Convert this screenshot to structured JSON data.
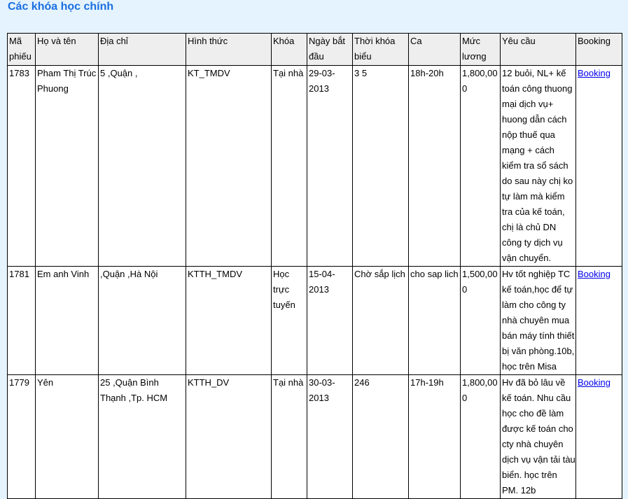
{
  "title": "Các khóa học chính",
  "table": {
    "headers": [
      "Mã phiếu",
      "Họ và tên",
      "Địa chỉ",
      "Hình thức",
      "Khóa",
      "Ngày bắt đầu",
      "Thời khóa biểu",
      "Ca",
      "Mức lương",
      "Yêu cầu",
      "Booking"
    ],
    "rows": [
      [
        "1783",
        "Pham Thị Trúc Phuong",
        "5 ,Quận ,",
        "KT_TMDV",
        "Tại nhà",
        "29-03-2013",
        "3 5",
        "18h-20h",
        "1,800,000",
        "12 buỏi, NL+ kế toán công thuong mại dịch vụ+ huong dẫn cách nộp thuế qua mạng + cách kiểm tra sổ sách do sau này chị ko tự làm mà kiểm tra của kế toán, chị là chủ DN công ty dịch vụ vận chuyển.",
        "Booking"
      ],
      [
        "1781",
        "Em anh Vinh",
        ",Quận ,Hà Nội",
        "KTTH_TMDV",
        "Học trực tuyến",
        "15-04-2013",
        "Chờ sắp lịch",
        "cho sap lich",
        "1,500,000",
        "Hv tốt nghiệp TC kế toán,học để tự làm cho công ty nhà chuyên mua bán máy tính thiết bị văn phòng.10b, học trên Misa",
        "Booking"
      ],
      [
        "1779",
        "Yên",
        "25 ,Quận Bình Thạnh ,Tp. HCM",
        "KTTH_DV",
        "Tại nhà",
        "30-03-2013",
        "246",
        "17h-19h",
        "1,800,000",
        "Hv đã bỏ lâu về kế toán. Nhu cầu học cho đề làm được kế toán cho cty nhà chuyên dịch vụ vận tải tàu biển. học trên PM. 12b",
        "Booking"
      ]
    ]
  },
  "colors": {
    "background": "#e4f3fd",
    "title": "#1a6fe0",
    "link": "#0000ee",
    "header_bg": "#eeeeee"
  }
}
